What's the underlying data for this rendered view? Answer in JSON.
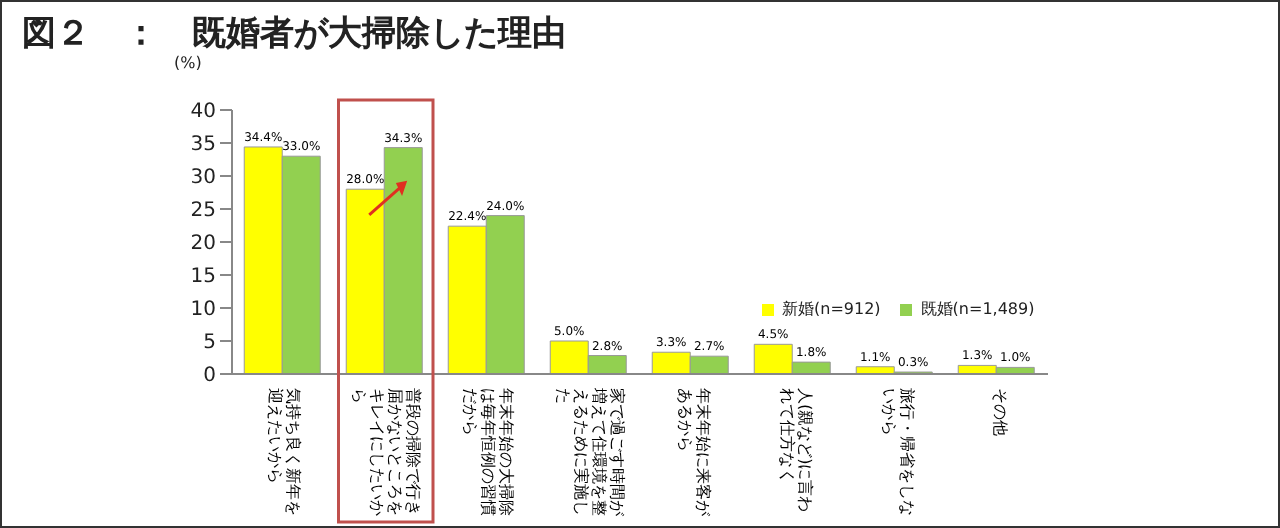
{
  "chart_data": {
    "type": "bar",
    "title": "図２　：　既婚者が大掃除した理由",
    "ylabel": "(%)",
    "categories": [
      "気持ち良く新年を迎えたいから",
      "普段の掃除で行き届かないところをキレイにしたいから",
      "年末年始の大掃除は毎年恒例の習慣だから",
      "家で過ごす時間が増えて住環境を整えるために実施した",
      "年末年始に来客があるから",
      "人(親など)に言われて仕方なく",
      "旅行・帰省をしないから",
      "その他"
    ],
    "series": [
      {
        "name": "新婚(n=912)",
        "color": "#ffff00",
        "values": [
          34.4,
          28.0,
          22.4,
          5.0,
          3.3,
          4.5,
          1.1,
          1.3
        ],
        "value_labels": [
          "34.4%",
          "28.0%",
          "22.4%",
          "5.0%",
          "3.3%",
          "4.5%",
          "1.1%",
          "1.3%"
        ]
      },
      {
        "name": "既婚(n=1,489)",
        "color": "#92d050",
        "values": [
          33.0,
          34.3,
          24.0,
          2.8,
          2.7,
          1.8,
          0.3,
          1.0
        ],
        "value_labels": [
          "33.0%",
          "34.3%",
          "24.0%",
          "2.8%",
          "2.7%",
          "1.8%",
          "0.3%",
          "1.0%"
        ]
      }
    ],
    "ylim": [
      0,
      40
    ],
    "yticks": [
      0,
      5,
      10,
      15,
      20,
      25,
      30,
      35,
      40
    ],
    "grid": false,
    "legend": "right"
  }
}
